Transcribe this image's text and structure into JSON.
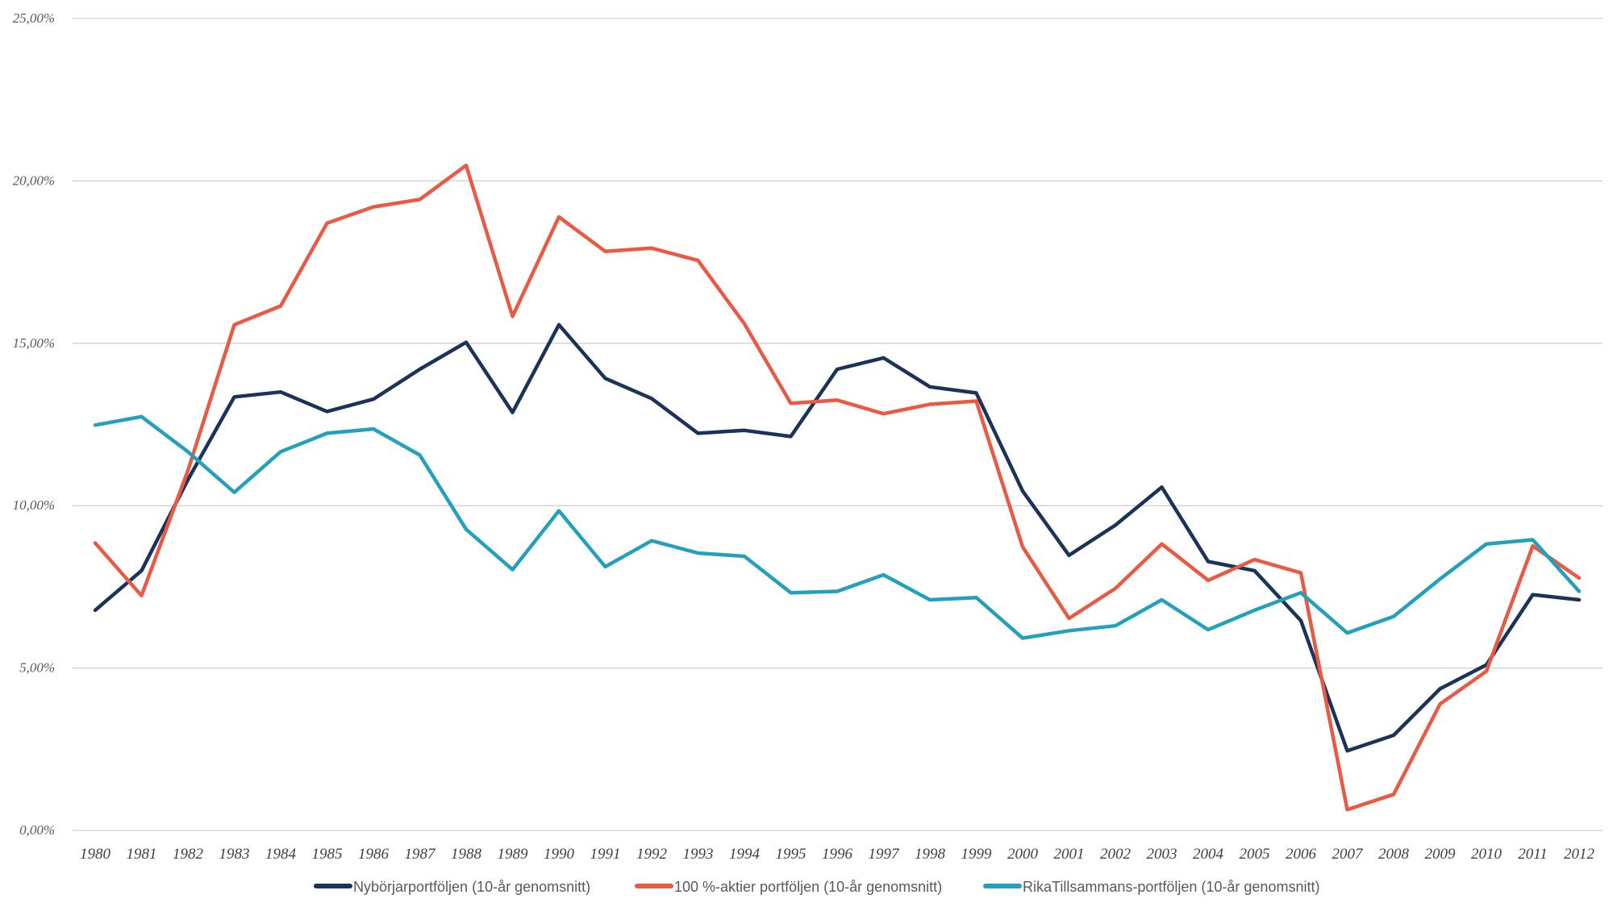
{
  "chart_data": {
    "type": "line",
    "title": "",
    "xlabel": "",
    "ylabel": "",
    "ylim": [
      0,
      25
    ],
    "grid": true,
    "legend_position": "bottom",
    "y_ticks": [
      "0,00%",
      "5,00%",
      "10,00%",
      "15,00%",
      "20,00%",
      "25,00%"
    ],
    "y_tick_values": [
      0,
      5,
      10,
      15,
      20,
      25
    ],
    "x": [
      "1980",
      "1981",
      "1982",
      "1983",
      "1984",
      "1985",
      "1986",
      "1987",
      "1988",
      "1989",
      "1990",
      "1991",
      "1992",
      "1993",
      "1994",
      "1995",
      "1996",
      "1997",
      "1998",
      "1999",
      "2000",
      "2001",
      "2002",
      "2003",
      "2004",
      "2005",
      "2006",
      "2007",
      "2008",
      "2009",
      "2010",
      "2011",
      "2012"
    ],
    "series": [
      {
        "name": "Nybörjarportföljen (10-år genomsnitt)",
        "color": "#1b3259",
        "values": [
          6.78,
          8.0,
          10.8,
          13.35,
          13.5,
          12.9,
          13.28,
          14.2,
          15.03,
          12.87,
          15.57,
          13.92,
          13.3,
          12.23,
          12.32,
          12.13,
          14.2,
          14.55,
          13.66,
          13.47,
          10.45,
          8.47,
          9.4,
          10.57,
          8.28,
          8.0,
          6.46,
          2.45,
          2.93,
          4.36,
          5.1,
          7.26,
          7.1
        ]
      },
      {
        "name": "100 %-aktier portföljen (10-år genomsnitt)",
        "color": "#e85a43",
        "values": [
          8.85,
          7.23,
          11.08,
          15.57,
          16.15,
          18.7,
          19.2,
          19.43,
          20.48,
          15.83,
          18.89,
          17.83,
          17.93,
          17.55,
          15.6,
          13.15,
          13.25,
          12.83,
          13.12,
          13.22,
          8.73,
          6.53,
          7.45,
          8.82,
          7.7,
          8.34,
          7.93,
          0.64,
          1.11,
          3.89,
          4.9,
          8.76,
          7.77
        ]
      },
      {
        "name": "RikaTillsammans-portföljen (10-år genomsnitt)",
        "color": "#23a0bb",
        "values": [
          12.48,
          12.74,
          11.66,
          10.41,
          11.66,
          12.23,
          12.36,
          11.56,
          9.27,
          8.03,
          9.84,
          8.12,
          8.92,
          8.54,
          8.44,
          7.32,
          7.36,
          7.87,
          7.1,
          7.17,
          5.92,
          6.15,
          6.3,
          7.1,
          6.18,
          6.78,
          7.32,
          6.08,
          6.59,
          7.74,
          8.82,
          8.95,
          7.36
        ]
      }
    ]
  }
}
